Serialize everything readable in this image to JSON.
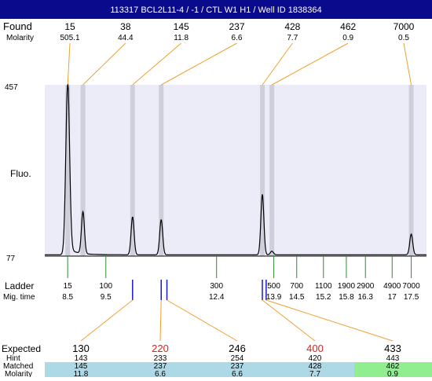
{
  "header": {
    "title": "113317  BCL2L11-4 / -1 / CTL W1 H1 / Well ID 1838364",
    "background": "#0a0a8c"
  },
  "labels": {
    "found": "Found",
    "molarity": "Molarity",
    "fluo": "Fluo.",
    "ladder": "Ladder",
    "mig_time": "Mig. time",
    "expected": "Expected",
    "hint": "Hint",
    "matched": "Matched",
    "molarity_bottom": "Molarity"
  },
  "colors": {
    "plot_bg": "#ececf8",
    "band": "#cfcfdc",
    "trace": "#000000",
    "connector": "#f0a030",
    "ladder_tick": "#2e8b2e",
    "peak_tick": "#1a1ad0",
    "expected_red": "#e02020",
    "row_blue": "#add8e6",
    "row_green": "#90ee90"
  },
  "chart_data": {
    "type": "line",
    "title": "113317  BCL2L11-4 / -1 / CTL W1 H1 / Well ID 1838364",
    "ylabel": "Fluo.",
    "ylim": [
      77,
      457
    ],
    "ytick_labels": [
      "457",
      "77"
    ],
    "xlim_mig_time": [
      7.9,
      17.9
    ],
    "found_peaks": [
      {
        "size": "15",
        "molarity": "505.1",
        "mig_time": 8.5,
        "height": 457
      },
      {
        "size": "38",
        "molarity": "44.4",
        "mig_time": 8.9,
        "height": 173
      },
      {
        "size": "145",
        "molarity": "11.8",
        "mig_time": 10.2,
        "height": 164
      },
      {
        "size": "237",
        "molarity": "6.6",
        "mig_time": 10.95,
        "height": 158
      },
      {
        "size": "428",
        "molarity": "7.7",
        "mig_time": 13.6,
        "height": 214
      },
      {
        "size": "462",
        "molarity": "0.9",
        "mig_time": 13.85,
        "height": 88
      },
      {
        "size": "7000",
        "molarity": "0.5",
        "mig_time": 17.5,
        "height": 126
      }
    ],
    "ladder": {
      "sizes": [
        "15",
        "100",
        "300",
        "500",
        "700",
        "1100",
        "1900",
        "2900",
        "4900",
        "7000"
      ],
      "mig_times": [
        "8.5",
        "9.5",
        "12.4",
        "13.9",
        "14.5",
        "15.2",
        "15.8",
        "16.3",
        "17",
        "17.5"
      ],
      "mig_values": [
        8.5,
        9.5,
        12.4,
        13.9,
        14.5,
        15.2,
        15.8,
        16.3,
        17.0,
        17.5
      ]
    },
    "expected": [
      {
        "expected": "130",
        "hint": "143",
        "matched": "145",
        "molarity": "11.8",
        "highlight": false,
        "row_color": "blue"
      },
      {
        "expected": "220",
        "hint": "233",
        "matched": "237",
        "molarity": "6.6",
        "highlight": true,
        "row_color": "blue"
      },
      {
        "expected": "246",
        "hint": "254",
        "matched": "237",
        "molarity": "6.6",
        "highlight": false,
        "row_color": "blue"
      },
      {
        "expected": "400",
        "hint": "420",
        "matched": "428",
        "molarity": "7.7",
        "highlight": true,
        "row_color": "blue"
      },
      {
        "expected": "433",
        "hint": "443",
        "matched": "462",
        "molarity": "0.9",
        "highlight": false,
        "row_color": "green"
      }
    ],
    "expected_markers": [
      {
        "mig_time": 10.2,
        "links_to": 0
      },
      {
        "mig_time": 10.95,
        "links_to": 1
      },
      {
        "mig_time": 11.1,
        "links_to": 2
      },
      {
        "mig_time": 13.6,
        "links_to": 3
      },
      {
        "mig_time": 13.7,
        "links_to": 4
      }
    ]
  }
}
